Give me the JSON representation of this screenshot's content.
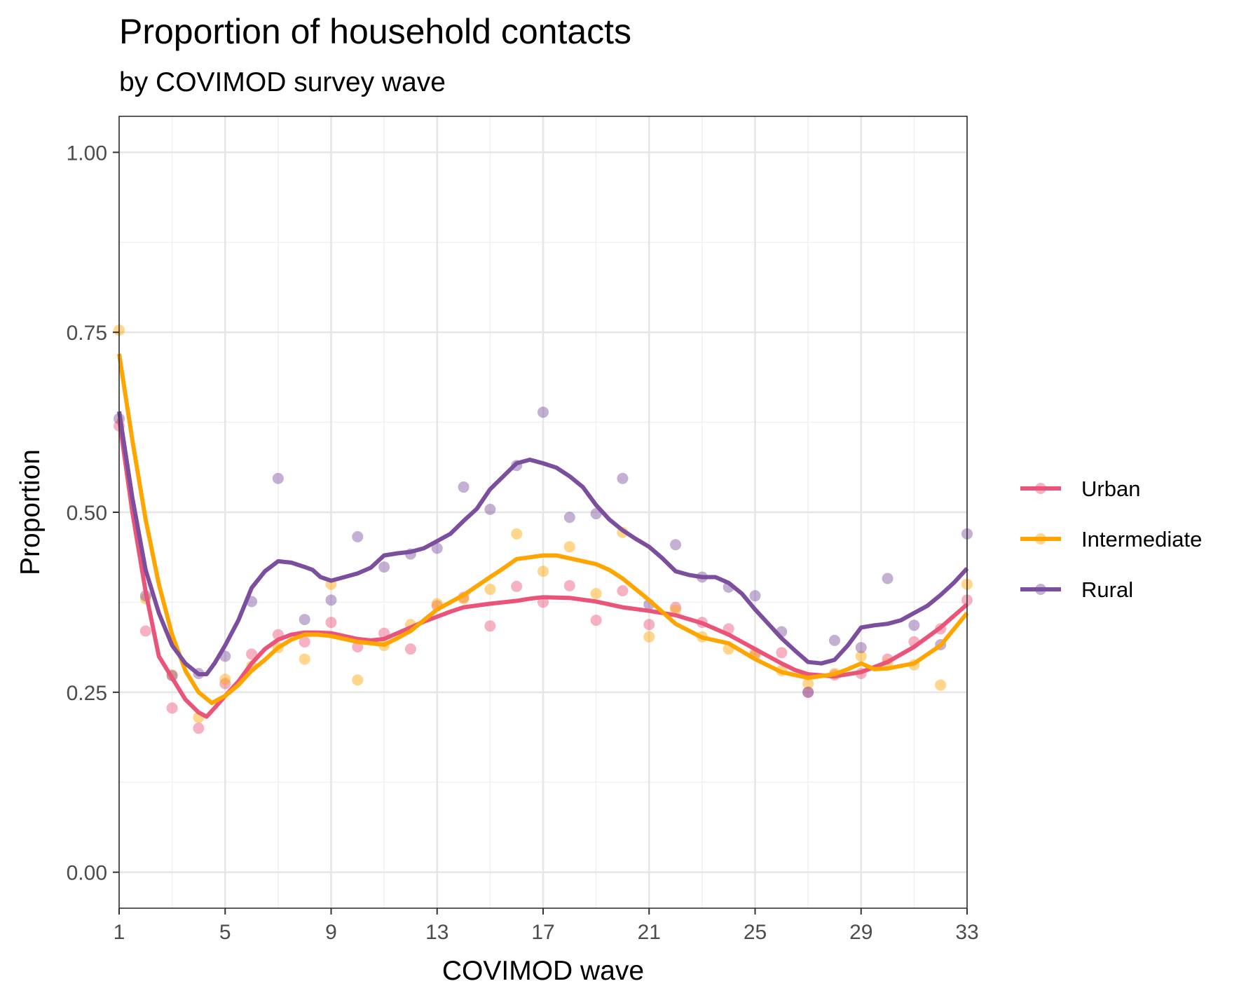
{
  "chart_data": {
    "type": "line",
    "title": "Proportion of household contacts",
    "subtitle": "by COVIMOD survey wave",
    "xlabel": "COVIMOD wave",
    "ylabel": "Proportion",
    "xlim": [
      1,
      33
    ],
    "ylim": [
      -0.05,
      1.05
    ],
    "x_ticks": [
      1,
      5,
      9,
      13,
      17,
      21,
      25,
      29,
      33
    ],
    "y_ticks": [
      0.0,
      0.25,
      0.5,
      0.75,
      1.0
    ],
    "y_tick_labels": [
      "0.00",
      "0.25",
      "0.50",
      "0.75",
      "1.00"
    ],
    "grid": true,
    "legend_position": "right",
    "series": [
      {
        "name": "Urban",
        "color": "#ea5478",
        "points": [
          [
            1,
            0.62
          ],
          [
            2,
            0.335
          ],
          [
            3,
            0.228
          ],
          [
            4,
            0.2
          ],
          [
            5,
            0.262
          ],
          [
            6,
            0.303
          ],
          [
            7,
            0.33
          ],
          [
            8,
            0.32
          ],
          [
            9,
            0.347
          ],
          [
            10,
            0.313
          ],
          [
            11,
            0.332
          ],
          [
            12,
            0.31
          ],
          [
            13,
            0.37
          ],
          [
            14,
            0.382
          ],
          [
            15,
            0.342
          ],
          [
            16,
            0.397
          ],
          [
            17,
            0.375
          ],
          [
            18,
            0.398
          ],
          [
            19,
            0.35
          ],
          [
            20,
            0.391
          ],
          [
            21,
            0.344
          ],
          [
            22,
            0.368
          ],
          [
            23,
            0.347
          ],
          [
            24,
            0.338
          ],
          [
            25,
            0.302
          ],
          [
            26,
            0.305
          ],
          [
            27,
            0.25
          ],
          [
            28,
            0.274
          ],
          [
            29,
            0.276
          ],
          [
            30,
            0.296
          ],
          [
            31,
            0.32
          ],
          [
            32,
            0.338
          ],
          [
            33,
            0.378
          ]
        ],
        "trend": [
          [
            1,
            0.63
          ],
          [
            1.5,
            0.5
          ],
          [
            2,
            0.39
          ],
          [
            2.5,
            0.3
          ],
          [
            3,
            0.27
          ],
          [
            3.5,
            0.24
          ],
          [
            4,
            0.222
          ],
          [
            4.3,
            0.216
          ],
          [
            4.6,
            0.228
          ],
          [
            5,
            0.245
          ],
          [
            5.5,
            0.265
          ],
          [
            6,
            0.29
          ],
          [
            6.5,
            0.31
          ],
          [
            7,
            0.323
          ],
          [
            7.5,
            0.33
          ],
          [
            8,
            0.333
          ],
          [
            8.5,
            0.333
          ],
          [
            9,
            0.332
          ],
          [
            9.5,
            0.328
          ],
          [
            10,
            0.324
          ],
          [
            10.5,
            0.322
          ],
          [
            11,
            0.324
          ],
          [
            11.5,
            0.332
          ],
          [
            12,
            0.34
          ],
          [
            12.5,
            0.348
          ],
          [
            13,
            0.355
          ],
          [
            13.5,
            0.362
          ],
          [
            14,
            0.368
          ],
          [
            15,
            0.373
          ],
          [
            16,
            0.377
          ],
          [
            16.5,
            0.38
          ],
          [
            17,
            0.382
          ],
          [
            18,
            0.381
          ],
          [
            19,
            0.376
          ],
          [
            20,
            0.368
          ],
          [
            21,
            0.363
          ],
          [
            22,
            0.357
          ],
          [
            23,
            0.346
          ],
          [
            24,
            0.33
          ],
          [
            25,
            0.31
          ],
          [
            26,
            0.29
          ],
          [
            26.5,
            0.281
          ],
          [
            27,
            0.275
          ],
          [
            28,
            0.272
          ],
          [
            29,
            0.278
          ],
          [
            30,
            0.292
          ],
          [
            31,
            0.313
          ],
          [
            32,
            0.34
          ],
          [
            33,
            0.372
          ]
        ]
      },
      {
        "name": "Intermediate",
        "color": "#ffa500",
        "points": [
          [
            1,
            0.753
          ],
          [
            2,
            0.38
          ],
          [
            3,
            0.274
          ],
          [
            4,
            0.215
          ],
          [
            5,
            0.268
          ],
          [
            6,
            0.286
          ],
          [
            7,
            0.312
          ],
          [
            8,
            0.296
          ],
          [
            9,
            0.4
          ],
          [
            10,
            0.267
          ],
          [
            11,
            0.315
          ],
          [
            12,
            0.344
          ],
          [
            13,
            0.373
          ],
          [
            14,
            0.38
          ],
          [
            15,
            0.393
          ],
          [
            16,
            0.47
          ],
          [
            17,
            0.418
          ],
          [
            18,
            0.452
          ],
          [
            19,
            0.387
          ],
          [
            20,
            0.472
          ],
          [
            21,
            0.327
          ],
          [
            22,
            0.364
          ],
          [
            23,
            0.327
          ],
          [
            24,
            0.31
          ],
          [
            25,
            0.305
          ],
          [
            26,
            0.28
          ],
          [
            27,
            0.262
          ],
          [
            28,
            0.276
          ],
          [
            29,
            0.3
          ],
          [
            30,
            0.29
          ],
          [
            31,
            0.288
          ],
          [
            32,
            0.26
          ],
          [
            33,
            0.4
          ]
        ],
        "trend": [
          [
            1,
            0.72
          ],
          [
            1.5,
            0.6
          ],
          [
            2,
            0.49
          ],
          [
            2.5,
            0.4
          ],
          [
            3,
            0.33
          ],
          [
            3.5,
            0.28
          ],
          [
            4,
            0.25
          ],
          [
            4.5,
            0.235
          ],
          [
            5,
            0.245
          ],
          [
            5.5,
            0.26
          ],
          [
            6,
            0.28
          ],
          [
            6.5,
            0.295
          ],
          [
            7,
            0.312
          ],
          [
            7.5,
            0.323
          ],
          [
            8,
            0.33
          ],
          [
            8.5,
            0.33
          ],
          [
            9,
            0.328
          ],
          [
            9.5,
            0.324
          ],
          [
            10,
            0.32
          ],
          [
            10.5,
            0.318
          ],
          [
            11,
            0.316
          ],
          [
            11.5,
            0.325
          ],
          [
            12,
            0.335
          ],
          [
            12.5,
            0.35
          ],
          [
            13,
            0.365
          ],
          [
            14,
            0.385
          ],
          [
            15,
            0.41
          ],
          [
            15.5,
            0.422
          ],
          [
            16,
            0.435
          ],
          [
            17,
            0.44
          ],
          [
            17.5,
            0.44
          ],
          [
            18,
            0.436
          ],
          [
            19,
            0.428
          ],
          [
            19.5,
            0.42
          ],
          [
            20,
            0.408
          ],
          [
            21,
            0.378
          ],
          [
            22,
            0.345
          ],
          [
            23,
            0.326
          ],
          [
            24,
            0.318
          ],
          [
            25,
            0.296
          ],
          [
            26,
            0.278
          ],
          [
            27,
            0.27
          ],
          [
            28,
            0.275
          ],
          [
            28.5,
            0.282
          ],
          [
            29,
            0.29
          ],
          [
            29.5,
            0.282
          ],
          [
            30,
            0.283
          ],
          [
            31,
            0.29
          ],
          [
            32,
            0.315
          ],
          [
            33,
            0.36
          ]
        ]
      },
      {
        "name": "Rural",
        "color": "#7b4f9e",
        "points": [
          [
            1,
            0.63
          ],
          [
            2,
            0.384
          ],
          [
            3,
            0.273
          ],
          [
            4,
            0.276
          ],
          [
            5,
            0.3
          ],
          [
            6,
            0.376
          ],
          [
            7,
            0.547
          ],
          [
            8,
            0.351
          ],
          [
            9,
            0.378
          ],
          [
            10,
            0.466
          ],
          [
            11,
            0.424
          ],
          [
            12,
            0.442
          ],
          [
            13,
            0.45
          ],
          [
            14,
            0.535
          ],
          [
            15,
            0.504
          ],
          [
            16,
            0.565
          ],
          [
            17,
            0.639
          ],
          [
            18,
            0.493
          ],
          [
            19,
            0.498
          ],
          [
            20,
            0.547
          ],
          [
            21,
            0.372
          ],
          [
            22,
            0.455
          ],
          [
            23,
            0.41
          ],
          [
            24,
            0.396
          ],
          [
            25,
            0.384
          ],
          [
            26,
            0.334
          ],
          [
            27,
            0.25
          ],
          [
            28,
            0.322
          ],
          [
            29,
            0.312
          ],
          [
            30,
            0.408
          ],
          [
            31,
            0.343
          ],
          [
            32,
            0.316
          ],
          [
            33,
            0.47
          ]
        ],
        "trend": [
          [
            1,
            0.64
          ],
          [
            1.5,
            0.52
          ],
          [
            2,
            0.42
          ],
          [
            2.5,
            0.36
          ],
          [
            3,
            0.315
          ],
          [
            3.5,
            0.29
          ],
          [
            4,
            0.275
          ],
          [
            4.3,
            0.275
          ],
          [
            4.6,
            0.29
          ],
          [
            5,
            0.315
          ],
          [
            5.5,
            0.35
          ],
          [
            6,
            0.395
          ],
          [
            6.5,
            0.418
          ],
          [
            7,
            0.432
          ],
          [
            7.5,
            0.43
          ],
          [
            8,
            0.424
          ],
          [
            8.3,
            0.42
          ],
          [
            8.6,
            0.41
          ],
          [
            9,
            0.405
          ],
          [
            9.5,
            0.41
          ],
          [
            10,
            0.415
          ],
          [
            10.5,
            0.423
          ],
          [
            11,
            0.44
          ],
          [
            11.5,
            0.443
          ],
          [
            12,
            0.445
          ],
          [
            12.5,
            0.45
          ],
          [
            13,
            0.46
          ],
          [
            13.5,
            0.47
          ],
          [
            14,
            0.488
          ],
          [
            14.5,
            0.505
          ],
          [
            15,
            0.532
          ],
          [
            15.5,
            0.55
          ],
          [
            16,
            0.568
          ],
          [
            16.5,
            0.573
          ],
          [
            17,
            0.568
          ],
          [
            17.5,
            0.562
          ],
          [
            18,
            0.55
          ],
          [
            18.5,
            0.535
          ],
          [
            19,
            0.51
          ],
          [
            19.5,
            0.49
          ],
          [
            20,
            0.475
          ],
          [
            20.5,
            0.463
          ],
          [
            21,
            0.452
          ],
          [
            21.5,
            0.436
          ],
          [
            22,
            0.418
          ],
          [
            22.5,
            0.413
          ],
          [
            23,
            0.41
          ],
          [
            23.5,
            0.41
          ],
          [
            24,
            0.402
          ],
          [
            24.5,
            0.387
          ],
          [
            25,
            0.365
          ],
          [
            25.5,
            0.345
          ],
          [
            26,
            0.325
          ],
          [
            26.5,
            0.308
          ],
          [
            27,
            0.292
          ],
          [
            27.5,
            0.29
          ],
          [
            28,
            0.295
          ],
          [
            28.5,
            0.315
          ],
          [
            29,
            0.34
          ],
          [
            29.5,
            0.343
          ],
          [
            30,
            0.345
          ],
          [
            30.5,
            0.35
          ],
          [
            31,
            0.36
          ],
          [
            31.5,
            0.37
          ],
          [
            32,
            0.385
          ],
          [
            32.5,
            0.402
          ],
          [
            33,
            0.422
          ]
        ]
      }
    ]
  }
}
